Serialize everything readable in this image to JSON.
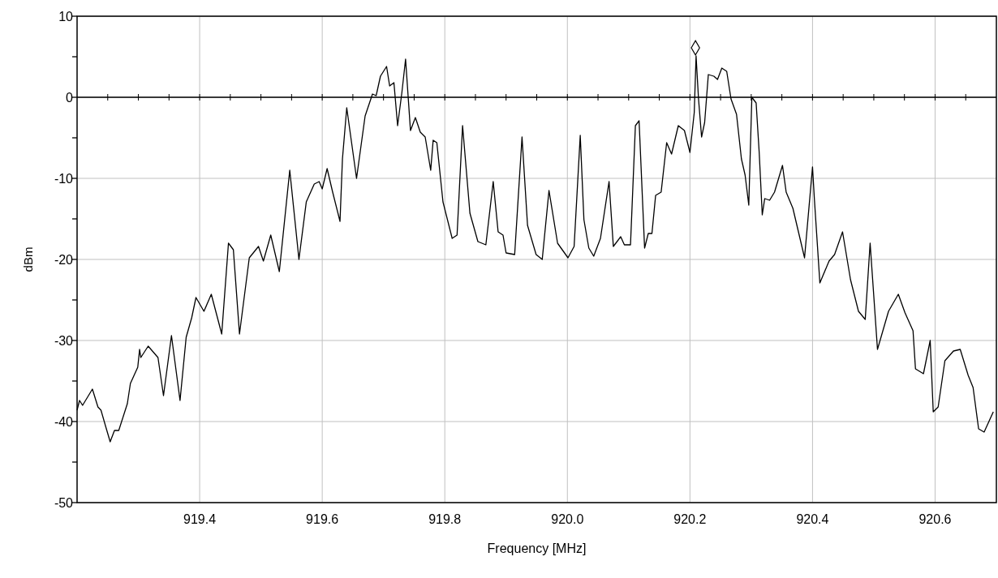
{
  "chart_data": {
    "type": "line",
    "xlabel": "Frequency [MHz]",
    "ylabel": "dBm",
    "xlim": [
      919.2,
      920.7
    ],
    "ylim": [
      -50,
      10
    ],
    "xticks": [
      {
        "value": 919.25,
        "label": null
      },
      {
        "value": 919.3,
        "label": null
      },
      {
        "value": 919.35,
        "label": null
      },
      {
        "value": 919.4,
        "label": "919.4"
      },
      {
        "value": 919.45,
        "label": null
      },
      {
        "value": 919.5,
        "label": null
      },
      {
        "value": 919.55,
        "label": null
      },
      {
        "value": 919.6,
        "label": "919.6"
      },
      {
        "value": 919.65,
        "label": null
      },
      {
        "value": 919.7,
        "label": null
      },
      {
        "value": 919.75,
        "label": null
      },
      {
        "value": 919.8,
        "label": "919.8"
      },
      {
        "value": 919.85,
        "label": null
      },
      {
        "value": 919.9,
        "label": null
      },
      {
        "value": 919.95,
        "label": null
      },
      {
        "value": 920.0,
        "label": "920.0"
      },
      {
        "value": 920.05,
        "label": null
      },
      {
        "value": 920.1,
        "label": null
      },
      {
        "value": 920.15,
        "label": null
      },
      {
        "value": 920.2,
        "label": "920.2"
      },
      {
        "value": 920.25,
        "label": null
      },
      {
        "value": 920.3,
        "label": null
      },
      {
        "value": 920.35,
        "label": null
      },
      {
        "value": 920.4,
        "label": "920.4"
      },
      {
        "value": 920.45,
        "label": null
      },
      {
        "value": 920.5,
        "label": null
      },
      {
        "value": 920.55,
        "label": null
      },
      {
        "value": 920.6,
        "label": "920.6"
      },
      {
        "value": 920.65,
        "label": null
      }
    ],
    "yticks": [
      -50,
      {
        "value": -45,
        "label": null
      },
      -40,
      {
        "value": -35,
        "label": null
      },
      -30,
      {
        "value": -25,
        "label": null
      },
      -20,
      {
        "value": -15,
        "label": null
      },
      -10,
      {
        "value": -5,
        "label": null
      },
      0,
      {
        "value": 5,
        "label": null
      },
      10
    ],
    "grid": true,
    "ref_lines": [
      {
        "axis": "y",
        "value": 0,
        "color": "#000000"
      }
    ],
    "series": [
      {
        "color": "#000000",
        "marker": "none",
        "x": [
          919.2,
          919.204,
          919.209,
          919.225,
          919.234,
          919.239,
          919.247,
          919.254,
          919.261,
          919.268,
          919.282,
          919.287,
          919.299,
          919.302,
          919.304,
          919.316,
          919.332,
          919.341,
          919.354,
          919.368,
          919.378,
          919.387,
          919.394,
          919.407,
          919.419,
          919.436,
          919.447,
          919.455,
          919.465,
          919.481,
          919.496,
          919.504,
          919.516,
          919.53,
          919.547,
          919.562,
          919.574,
          919.587,
          919.595,
          919.6,
          919.608,
          919.617,
          919.629,
          919.633,
          919.64,
          919.656,
          919.67,
          919.682,
          919.688,
          919.695,
          919.705,
          919.71,
          919.717,
          919.723,
          919.73,
          919.736,
          919.744,
          919.752,
          919.76,
          919.768,
          919.777,
          919.781,
          919.787,
          919.797,
          919.812,
          919.82,
          919.829,
          919.841,
          919.854,
          919.867,
          919.879,
          919.887,
          919.895,
          919.9,
          919.914,
          919.926,
          919.935,
          919.949,
          919.959,
          919.97,
          919.984,
          920.001,
          920.011,
          920.021,
          920.027,
          920.035,
          920.043,
          920.054,
          920.068,
          920.075,
          920.087,
          920.093,
          920.103,
          920.111,
          920.117,
          920.126,
          920.132,
          920.138,
          920.144,
          920.153,
          920.162,
          920.17,
          920.181,
          920.191,
          920.2,
          920.207,
          920.21,
          920.214,
          920.219,
          920.224,
          920.23,
          920.239,
          920.245,
          920.252,
          920.26,
          920.267,
          920.276,
          920.284,
          920.29,
          920.296,
          920.301,
          920.308,
          920.313,
          920.318,
          920.322,
          920.33,
          920.338,
          920.351,
          920.357,
          920.368,
          920.387,
          920.4,
          920.403,
          920.412,
          920.427,
          920.436,
          920.449,
          920.462,
          920.475,
          920.486,
          920.494,
          920.506,
          920.524,
          920.54,
          920.551,
          920.564,
          920.568,
          920.581,
          920.592,
          920.597,
          920.605,
          920.616,
          920.63,
          920.641,
          920.654,
          920.662,
          920.671,
          920.68,
          920.695
        ],
        "values": [
          -38.6,
          -37.4,
          -38,
          -36,
          -38.2,
          -38.6,
          -40.7,
          -42.5,
          -41.1,
          -41.1,
          -37.8,
          -35.3,
          -33.3,
          -31.1,
          -32.1,
          -30.7,
          -32.1,
          -36.8,
          -29.4,
          -37.4,
          -29.6,
          -27.2,
          -24.7,
          -26.4,
          -24.3,
          -29.2,
          -18,
          -18.8,
          -29.2,
          -19.8,
          -18.4,
          -20.2,
          -17,
          -21.5,
          -9,
          -20,
          -12.9,
          -10.7,
          -10.4,
          -11.3,
          -8.8,
          -11.7,
          -15.3,
          -7.6,
          -1.3,
          -10,
          -2.3,
          0.4,
          0.2,
          2.6,
          3.8,
          1.4,
          1.8,
          -3.5,
          0.6,
          4.7,
          -4.1,
          -2.5,
          -4.3,
          -4.9,
          -9,
          -5.3,
          -5.6,
          -12.9,
          -17.4,
          -17,
          -3.5,
          -14.3,
          -17.8,
          -18.2,
          -10.4,
          -16.6,
          -17,
          -19.2,
          -19.4,
          -4.9,
          -15.8,
          -19.4,
          -20,
          -11.5,
          -18,
          -19.8,
          -18.4,
          -4.7,
          -15.1,
          -18.6,
          -19.6,
          -17.4,
          -10.4,
          -18.4,
          -17.2,
          -18.2,
          -18.2,
          -3.5,
          -2.9,
          -18.6,
          -16.8,
          -16.8,
          -12.1,
          -11.7,
          -5.6,
          -7,
          -3.5,
          -4.1,
          -6.8,
          -1.9,
          5.1,
          -0.2,
          -4.9,
          -3.1,
          2.8,
          2.6,
          2.2,
          3.6,
          3.2,
          -0.2,
          -2.1,
          -7.6,
          -9.6,
          -13.3,
          0,
          -0.7,
          -6.8,
          -14.5,
          -12.5,
          -12.7,
          -11.7,
          -8.4,
          -11.7,
          -13.7,
          -19.8,
          -8.6,
          -12.5,
          -22.9,
          -20.2,
          -19.4,
          -16.6,
          -22.5,
          -26.4,
          -27.4,
          -18,
          -31.1,
          -26.4,
          -24.3,
          -26.6,
          -28.8,
          -33.5,
          -34.1,
          -30,
          -38.8,
          -38.2,
          -32.5,
          -31.3,
          -31.1,
          -34.3,
          -35.8,
          -40.9,
          -41.3,
          -38.8
        ]
      },
      {
        "type": "scatter",
        "color": "#000000",
        "marker": "diamond",
        "x": [
          920.209
        ],
        "values": [
          6.1
        ]
      }
    ]
  }
}
